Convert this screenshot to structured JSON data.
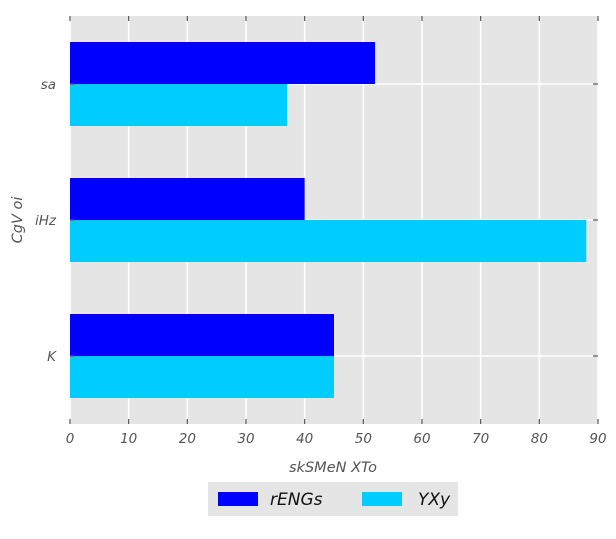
{
  "chart_data": {
    "type": "bar",
    "orientation": "horizontal",
    "categories": [
      "K",
      "iHz",
      "sa"
    ],
    "series": [
      {
        "name": "rENGs",
        "values": [
          45,
          40,
          52
        ],
        "color": "#0000ff"
      },
      {
        "name": "YXy",
        "values": [
          45,
          88,
          37
        ],
        "color": "#00ccff"
      }
    ],
    "xlabel": "skSMeN XTo",
    "ylabel": "CgV oi",
    "xlim": [
      0,
      90
    ],
    "xticks": [
      "0",
      "10",
      "20",
      "30",
      "40",
      "50",
      "60",
      "70",
      "80",
      "90"
    ],
    "grid": true,
    "legend_position": "bottom-center",
    "plot_background": "#e5e5e5",
    "grid_color": "#ffffff"
  }
}
